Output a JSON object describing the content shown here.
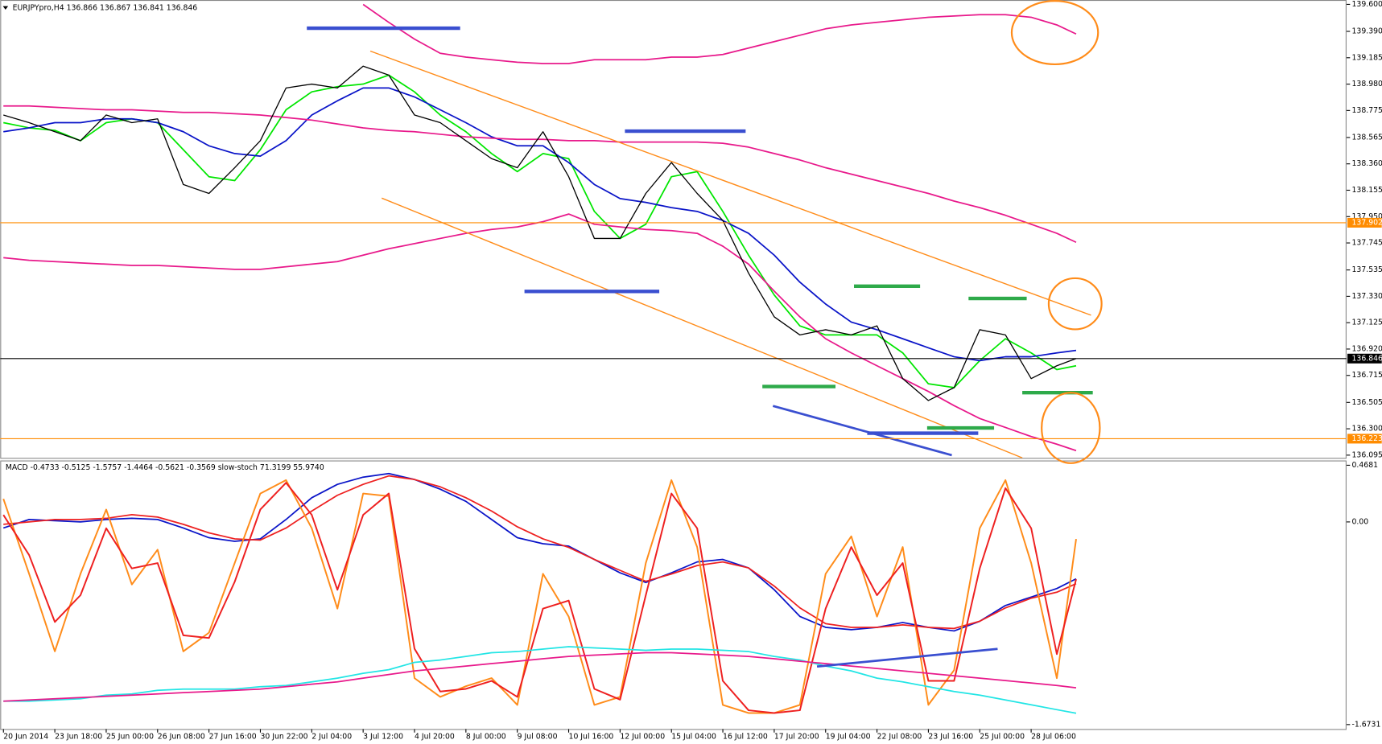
{
  "chart_data": [
    {
      "type": "line",
      "title": "EURJPYpro,H4  136.866 136.867 136.841 136.846",
      "x": [
        0,
        4,
        8,
        12,
        16,
        20,
        24,
        28,
        32,
        36,
        40,
        44,
        48,
        52,
        56,
        60,
        64,
        68,
        72,
        76,
        80,
        84,
        88,
        92,
        96,
        100,
        104,
        108,
        112,
        116,
        120,
        124,
        128,
        132,
        136,
        140,
        144,
        148,
        152,
        156,
        160,
        164,
        167
      ],
      "xlim": [
        -0.5,
        209.1
      ],
      "ylim": [
        136.074,
        139.634
      ],
      "yticks": [
        {
          "value": 139.6,
          "label": "139.600"
        },
        {
          "value": 139.39,
          "label": "139.390"
        },
        139.185,
        {
          "value": 138.98,
          "label": "138.980"
        },
        138.775,
        138.565,
        {
          "value": 138.36,
          "label": "138.360"
        },
        138.155,
        {
          "value": 137.95,
          "label": "137.950"
        },
        137.745,
        137.535,
        {
          "value": 137.33,
          "label": "137.330"
        },
        137.125,
        {
          "value": 136.92,
          "label": "136.920"
        },
        136.715,
        136.505,
        {
          "value": 136.3,
          "label": "136.300"
        },
        136.095
      ],
      "values": [
        138.74,
        138.68,
        138.61,
        138.54,
        138.74,
        138.68,
        138.71,
        138.2,
        138.13,
        138.33,
        138.54,
        138.95,
        138.98,
        138.95,
        139.12,
        139.05,
        138.74,
        138.68,
        138.54,
        138.4,
        138.33,
        138.61,
        138.26,
        137.78,
        137.78,
        138.13,
        138.37,
        138.13,
        137.92,
        137.51,
        137.17,
        137.03,
        137.07,
        137.03,
        137.1,
        136.69,
        136.52,
        136.62,
        137.07,
        137.03,
        136.69,
        136.79,
        136.846
      ],
      "color": "#000000",
      "series": [
        {
          "color": "#00e600",
          "values": [
            138.68,
            138.64,
            138.62,
            138.54,
            138.68,
            138.71,
            138.68,
            138.47,
            138.26,
            138.23,
            138.47,
            138.78,
            138.92,
            138.96,
            138.98,
            139.05,
            138.92,
            138.74,
            138.61,
            138.44,
            138.3,
            138.44,
            138.4,
            137.99,
            137.78,
            137.89,
            138.26,
            138.3,
            137.99,
            137.65,
            137.34,
            137.1,
            137.03,
            137.03,
            137.03,
            136.89,
            136.65,
            136.62,
            136.83,
            137.0,
            136.89,
            136.76,
            136.79
          ]
        },
        {
          "color": "#0a14c8",
          "values": [
            138.61,
            138.64,
            138.68,
            138.68,
            138.71,
            138.71,
            138.68,
            138.61,
            138.5,
            138.44,
            138.42,
            138.54,
            138.74,
            138.85,
            138.95,
            138.95,
            138.88,
            138.78,
            138.68,
            138.57,
            138.5,
            138.5,
            138.37,
            138.2,
            138.09,
            138.06,
            138.02,
            137.99,
            137.92,
            137.82,
            137.65,
            137.44,
            137.27,
            137.13,
            137.07,
            137.0,
            136.93,
            136.86,
            136.83,
            136.86,
            136.86,
            136.89,
            136.91
          ]
        },
        {
          "color": "#e8198b",
          "values": [
            138.81,
            138.81,
            138.8,
            138.79,
            138.78,
            138.78,
            138.77,
            138.76,
            138.76,
            138.75,
            138.74,
            138.72,
            138.7,
            138.67,
            138.64,
            138.62,
            138.61,
            138.59,
            138.57,
            138.56,
            138.55,
            138.55,
            138.54,
            138.54,
            138.53,
            138.53,
            138.53,
            138.53,
            138.52,
            138.49,
            138.44,
            138.39,
            138.33,
            138.28,
            138.23,
            138.18,
            138.13,
            138.07,
            138.02,
            137.96,
            137.89,
            137.82,
            137.75
          ]
        },
        {
          "color": "#e8198b",
          "values": [
            null,
            null,
            null,
            null,
            null,
            null,
            null,
            null,
            null,
            null,
            null,
            null,
            null,
            null,
            139.6,
            139.46,
            139.33,
            139.22,
            139.19,
            139.17,
            139.15,
            139.14,
            139.14,
            139.17,
            139.17,
            139.17,
            139.19,
            139.19,
            139.21,
            139.26,
            139.31,
            139.36,
            139.41,
            139.44,
            139.46,
            139.48,
            139.5,
            139.51,
            139.52,
            139.52,
            139.5,
            139.44,
            139.37
          ]
        },
        {
          "color": "#e8198b",
          "values": [
            137.63,
            137.61,
            137.6,
            137.59,
            137.58,
            137.57,
            137.57,
            137.56,
            137.55,
            137.54,
            137.54,
            137.56,
            137.58,
            137.6,
            137.65,
            137.7,
            137.74,
            137.78,
            137.82,
            137.85,
            137.87,
            137.91,
            137.97,
            137.89,
            137.87,
            137.85,
            137.84,
            137.82,
            137.72,
            137.58,
            137.37,
            137.17,
            137.0,
            136.89,
            136.79,
            136.69,
            136.59,
            136.48,
            136.38,
            136.31,
            136.24,
            136.18,
            136.13
          ]
        }
      ],
      "hlines": [
        {
          "value": 137.902,
          "color": "#ff8c00"
        },
        {
          "value": 136.223,
          "color": "#ff8c00"
        },
        {
          "value": 136.846,
          "color": "#000000"
        }
      ]
    },
    {
      "type": "line",
      "title": "MACD -0.4733 -0.5125 -1.5757 -1.4464 -0.5621 -0.3569  slow-stoch 71.3199 55.9740",
      "x": [
        0,
        4,
        8,
        12,
        16,
        20,
        24,
        28,
        32,
        36,
        40,
        44,
        48,
        52,
        56,
        60,
        64,
        68,
        72,
        76,
        80,
        84,
        88,
        92,
        96,
        100,
        104,
        108,
        112,
        116,
        120,
        124,
        128,
        132,
        136,
        140,
        144,
        148,
        152,
        156,
        160,
        164,
        167
      ],
      "xlim": [
        -0.5,
        209.1
      ],
      "ylim": [
        -1.71,
        0.5
      ],
      "yticks": [
        0.4681,
        {
          "value": 0,
          "label": "0.00"
        },
        -1.6731
      ],
      "y2lim": [
        0,
        100
      ],
      "xticks": [
        {
          "value": 0,
          "label": "20 Jun 2014"
        },
        {
          "value": 8,
          "label": "23 Jun 18:00"
        },
        {
          "value": 16,
          "label": "25 Jun 00:00"
        },
        {
          "value": 24,
          "label": "26 Jun 08:00"
        },
        {
          "value": 32,
          "label": "27 Jun 16:00"
        },
        {
          "value": 40,
          "label": "30 Jun 22:00"
        },
        {
          "value": 48,
          "label": "2 Jul 04:00"
        },
        {
          "value": 56,
          "label": "3 Jul 12:00"
        },
        {
          "value": 64,
          "label": "4 Jul 20:00"
        },
        {
          "value": 72,
          "label": "8 Jul 00:00"
        },
        {
          "value": 80,
          "label": "9 Jul 08:00"
        },
        {
          "value": 88,
          "label": "10 Jul 16:00"
        },
        {
          "value": 96,
          "label": "12 Jul 00:00"
        },
        {
          "value": 104,
          "label": "15 Jul 04:00"
        },
        {
          "value": 112,
          "label": "16 Jul 12:00"
        },
        {
          "value": 120,
          "label": "17 Jul 20:00"
        },
        {
          "value": 128,
          "label": "19 Jul 04:00"
        },
        {
          "value": 136,
          "label": "22 Jul 08:00"
        },
        {
          "value": 144,
          "label": "23 Jul 16:00"
        },
        {
          "value": 152,
          "label": "25 Jul 00:00"
        },
        {
          "value": 160,
          "label": "28 Jul 06:00"
        }
      ],
      "series": [
        {
          "color": "#0a14c8",
          "values": [
            -0.05,
            0.02,
            0.01,
            0.0,
            0.02,
            0.03,
            0.02,
            -0.05,
            -0.13,
            -0.16,
            -0.14,
            0.02,
            0.2,
            0.31,
            0.37,
            0.4,
            0.35,
            0.27,
            0.17,
            0.02,
            -0.13,
            -0.18,
            -0.2,
            -0.31,
            -0.42,
            -0.5,
            -0.42,
            -0.33,
            -0.31,
            -0.38,
            -0.56,
            -0.78,
            -0.87,
            -0.89,
            -0.87,
            -0.83,
            -0.87,
            -0.9,
            -0.82,
            -0.69,
            -0.62,
            -0.55,
            -0.47
          ]
        },
        {
          "color": "#ee2020",
          "values": [
            -0.02,
            0.0,
            0.02,
            0.02,
            0.03,
            0.06,
            0.04,
            -0.02,
            -0.09,
            -0.14,
            -0.15,
            -0.05,
            0.09,
            0.22,
            0.31,
            0.38,
            0.35,
            0.29,
            0.2,
            0.09,
            -0.04,
            -0.14,
            -0.21,
            -0.31,
            -0.4,
            -0.49,
            -0.43,
            -0.36,
            -0.33,
            -0.38,
            -0.53,
            -0.71,
            -0.84,
            -0.87,
            -0.87,
            -0.85,
            -0.87,
            -0.88,
            -0.82,
            -0.71,
            -0.63,
            -0.58,
            -0.51
          ]
        },
        {
          "color": "#ff8c1a",
          "axis": "y2",
          "values": [
            86,
            58,
            29,
            58,
            82,
            54,
            67,
            29,
            36,
            62,
            88,
            93,
            75,
            45,
            88,
            87,
            19,
            12,
            16,
            19,
            9,
            58,
            42,
            9,
            12,
            62,
            93,
            68,
            9,
            6,
            6,
            9,
            58,
            72,
            42,
            68,
            9,
            22,
            75,
            93,
            62,
            19,
            71
          ]
        },
        {
          "color": "#ee2020",
          "axis": "y2",
          "values": [
            80,
            65,
            40,
            50,
            75,
            60,
            62,
            35,
            34,
            55,
            82,
            92,
            80,
            52,
            80,
            88,
            30,
            14,
            15,
            18,
            12,
            45,
            48,
            15,
            11,
            50,
            88,
            75,
            18,
            7,
            6,
            7,
            45,
            68,
            50,
            62,
            18,
            18,
            60,
            90,
            75,
            28,
            56
          ]
        },
        {
          "color": "#22e5e5",
          "values": [
            -1.48,
            -1.48,
            -1.47,
            -1.46,
            -1.43,
            -1.42,
            -1.39,
            -1.38,
            -1.38,
            -1.38,
            -1.36,
            -1.35,
            -1.32,
            -1.29,
            -1.25,
            -1.22,
            -1.16,
            -1.14,
            -1.11,
            -1.08,
            -1.07,
            -1.05,
            -1.03,
            -1.04,
            -1.05,
            -1.06,
            -1.05,
            -1.05,
            -1.06,
            -1.07,
            -1.11,
            -1.14,
            -1.19,
            -1.23,
            -1.29,
            -1.32,
            -1.36,
            -1.4,
            -1.43,
            -1.47,
            -1.51,
            -1.55,
            -1.58
          ]
        },
        {
          "color": "#e8198b",
          "values": [
            -1.48,
            -1.47,
            -1.46,
            -1.45,
            -1.44,
            -1.43,
            -1.42,
            -1.41,
            -1.4,
            -1.39,
            -1.38,
            -1.36,
            -1.34,
            -1.32,
            -1.29,
            -1.26,
            -1.23,
            -1.21,
            -1.19,
            -1.17,
            -1.15,
            -1.13,
            -1.11,
            -1.1,
            -1.09,
            -1.08,
            -1.08,
            -1.09,
            -1.1,
            -1.11,
            -1.13,
            -1.15,
            -1.17,
            -1.19,
            -1.21,
            -1.23,
            -1.25,
            -1.27,
            -1.29,
            -1.31,
            -1.33,
            -1.35,
            -1.37
          ]
        }
      ]
    }
  ]
}
